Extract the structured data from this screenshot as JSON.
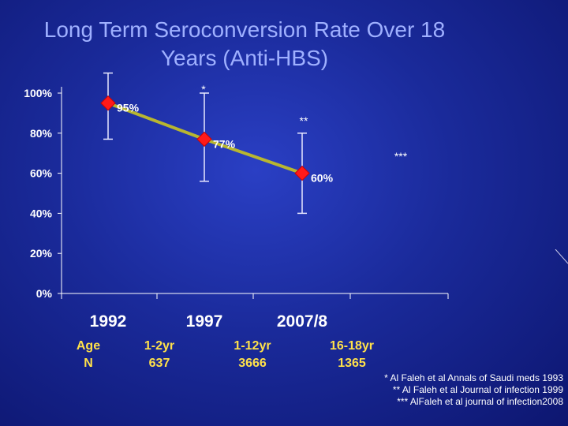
{
  "slide": {
    "title_line1": "Long Term Seroconversion Rate Over 18",
    "title_line2": "Years (Anti-HBS)"
  },
  "chart_data": {
    "type": "line",
    "title": "",
    "xlabel": "",
    "ylabel": "",
    "categories": [
      "1992",
      "1997",
      "2007/8"
    ],
    "series": [
      {
        "values": [
          95,
          77,
          60
        ],
        "data_labels": [
          "95%",
          "77%",
          "60%"
        ],
        "error_low": [
          77,
          56,
          40
        ],
        "error_high": [
          110,
          100,
          80
        ],
        "line_color": "#b8b630",
        "marker_color": "#ff1a1a"
      }
    ],
    "annotations": [
      "*",
      "**",
      "***"
    ],
    "y_ticks": [
      "0%",
      "20%",
      "40%",
      "60%",
      "80%",
      "100%"
    ],
    "ylim": [
      0,
      100
    ],
    "grid": false,
    "legend": "none"
  },
  "table": {
    "col_header": [
      "Age",
      "N"
    ],
    "cols": [
      {
        "age": "1-2yr",
        "n": "637"
      },
      {
        "age": "1-12yr",
        "n": "3666"
      },
      {
        "age": "16-18yr",
        "n": "1365"
      }
    ]
  },
  "references": [
    "* Al Faleh et al   Annals of  Saudi meds 1993",
    "** Al Faleh et al Journal of infection 1999",
    "***  AlFaleh et al journal of infection2008"
  ],
  "colors": {
    "background": "#1a2a9a",
    "title": "#9fb0ff",
    "table_text": "#ffe14a"
  }
}
